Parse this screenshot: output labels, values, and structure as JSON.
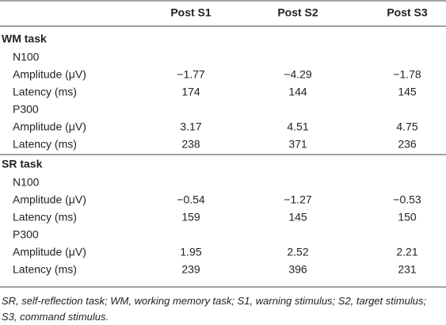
{
  "table": {
    "header": [
      "Post S1",
      "Post S2",
      "Post S3"
    ],
    "sections": [
      {
        "title": "WM task",
        "groups": [
          {
            "name": "N100",
            "rows": [
              {
                "label": "Amplitude (μV)",
                "values": [
                  "−1.77",
                  "−4.29",
                  "−1.78"
                ]
              },
              {
                "label": "Latency (ms)",
                "values": [
                  "174",
                  "144",
                  "145"
                ]
              }
            ]
          },
          {
            "name": "P300",
            "rows": [
              {
                "label": "Amplitude (μV)",
                "values": [
                  "3.17",
                  "4.51",
                  "4.75"
                ]
              },
              {
                "label": "Latency (ms)",
                "values": [
                  "238",
                  "371",
                  "236"
                ]
              }
            ]
          }
        ]
      },
      {
        "title": "SR task",
        "groups": [
          {
            "name": "N100",
            "rows": [
              {
                "label": "Amplitude (μV)",
                "values": [
                  "−0.54",
                  "−1.27",
                  "−0.53"
                ]
              },
              {
                "label": "Latency (ms)",
                "values": [
                  "159",
                  "145",
                  "150"
                ]
              }
            ]
          },
          {
            "name": "P300",
            "rows": [
              {
                "label": "Amplitude (μV)",
                "values": [
                  "1.95",
                  "2.52",
                  "2.21"
                ]
              },
              {
                "label": "Latency (ms)",
                "values": [
                  "239",
                  "396",
                  "231"
                ]
              }
            ]
          }
        ]
      }
    ],
    "footnote": "SR, self-reflection task; WM, working memory task; S1, warning stimulus; S2, target stimulus; S3, command stimulus."
  }
}
